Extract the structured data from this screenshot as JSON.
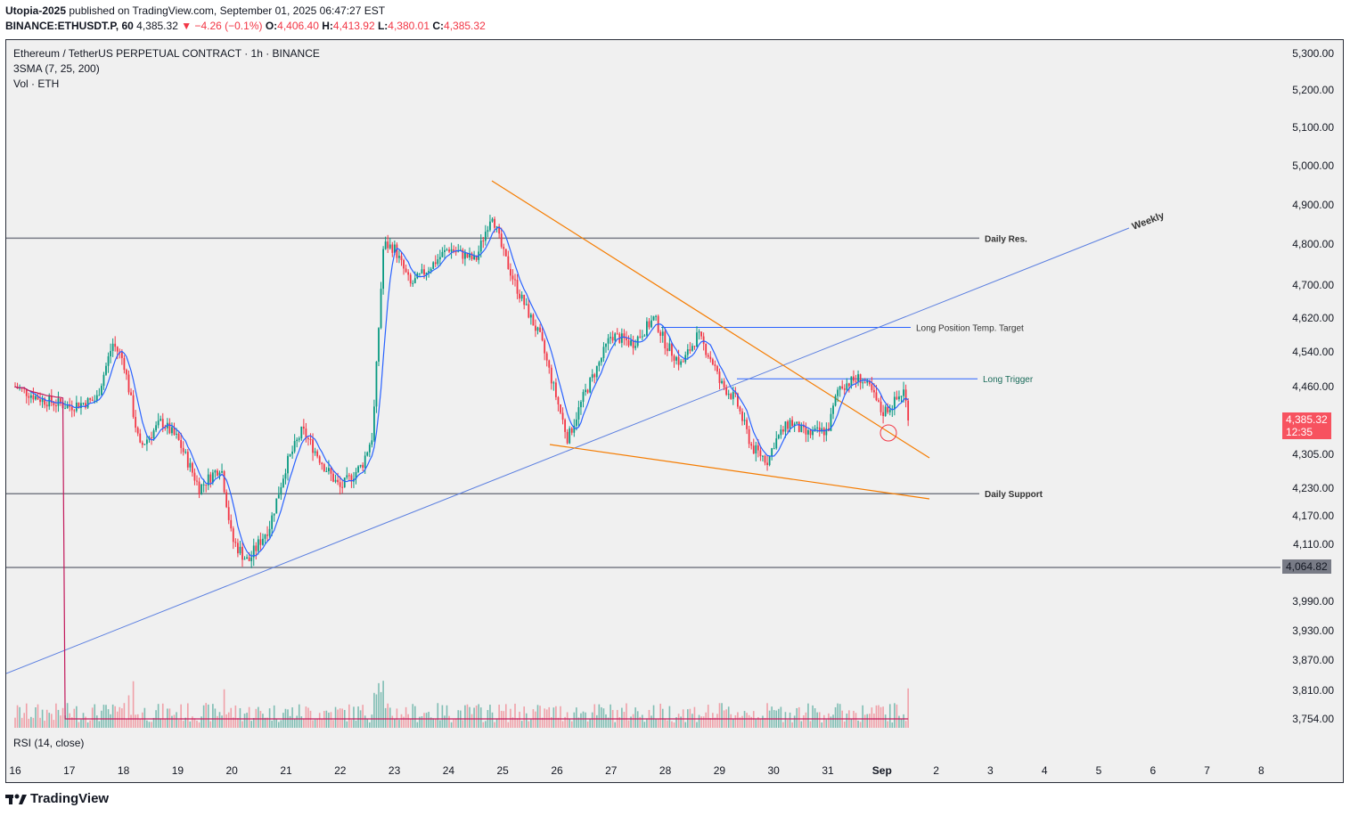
{
  "header": {
    "publisher": "Utopia-2025",
    "published_text": "published on TradingView.com, September 01, 2025 06:47:27 EST",
    "symbol": "BINANCE:ETHUSDT.P, 60",
    "last": "4,385.32",
    "change": "▼ −4.26 (−0.1%)",
    "o_label": "O:",
    "o_value": "4,406.40",
    "h_label": "H:",
    "h_value": "4,413.92",
    "l_label": "L:",
    "l_value": "4,380.01",
    "c_label": "C:",
    "c_value": "4,385.32"
  },
  "legend": {
    "title": "Ethereum / TetherUS PERPETUAL CONTRACT · 1h · BINANCE",
    "sma": "3SMA (7, 25, 200)",
    "vol": "Vol · ETH",
    "rsi": "RSI (14, close)"
  },
  "brand": "TradingView",
  "price_tag": {
    "value": "4,385.32",
    "countdown": "12:35",
    "color": "#f7525f"
  },
  "level_tag": {
    "value": "4,064.82",
    "color": "#787b86"
  },
  "colors": {
    "up": "#089981",
    "down": "#f23645",
    "sma_fast": "#2962ff",
    "sma_slow": "#c2185b",
    "trend": "#f57c00",
    "weekly": "#5b7fe0",
    "level": "#787b86"
  },
  "chart_data": {
    "type": "candlestick",
    "title": "Ethereum / TetherUS PERPETUAL CONTRACT · 1h · BINANCE",
    "price_ticks": [
      "5,300.00",
      "5,200.00",
      "5,100.00",
      "5,000.00",
      "4,900.00",
      "4,800.00",
      "4,700.00",
      "4,620.00",
      "4,540.00",
      "4,460.00",
      "4,305.00",
      "4,230.00",
      "4,170.00",
      "4,110.00",
      "3,990.00",
      "3,930.00",
      "3,870.00",
      "3,810.00",
      "3,754.00"
    ],
    "date_ticks": [
      "16",
      "17",
      "18",
      "19",
      "20",
      "21",
      "22",
      "23",
      "24",
      "25",
      "26",
      "27",
      "28",
      "29",
      "30",
      "31",
      "Sep",
      "2",
      "3",
      "4",
      "5",
      "6",
      "7",
      "8"
    ],
    "close_path": [
      [
        "16",
        4460
      ],
      [
        "16.5",
        4430
      ],
      [
        "17",
        4415
      ],
      [
        "17.5",
        4430
      ],
      [
        "17.8",
        4560
      ],
      [
        "18",
        4520
      ],
      [
        "18.3",
        4320
      ],
      [
        "18.7",
        4380
      ],
      [
        "19",
        4340
      ],
      [
        "19.4",
        4230
      ],
      [
        "19.8",
        4280
      ],
      [
        "20",
        4120
      ],
      [
        "20.3",
        4075
      ],
      [
        "20.7",
        4150
      ],
      [
        "21",
        4280
      ],
      [
        "21.3",
        4360
      ],
      [
        "21.7",
        4280
      ],
      [
        "22",
        4230
      ],
      [
        "22.4",
        4280
      ],
      [
        "22.6",
        4350
      ],
      [
        "22.8",
        4800
      ],
      [
        "23",
        4790
      ],
      [
        "23.3",
        4700
      ],
      [
        "23.7",
        4750
      ],
      [
        "24",
        4790
      ],
      [
        "24.5",
        4760
      ],
      [
        "24.8",
        4880
      ],
      [
        "25",
        4780
      ],
      [
        "25.3",
        4680
      ],
      [
        "25.7",
        4570
      ],
      [
        "26",
        4430
      ],
      [
        "26.2",
        4340
      ],
      [
        "26.5",
        4440
      ],
      [
        "26.8",
        4520
      ],
      [
        "27",
        4580
      ],
      [
        "27.4",
        4560
      ],
      [
        "27.8",
        4620
      ],
      [
        "28",
        4560
      ],
      [
        "28.3",
        4510
      ],
      [
        "28.6",
        4580
      ],
      [
        "28.9",
        4510
      ],
      [
        "29",
        4470
      ],
      [
        "29.3",
        4430
      ],
      [
        "29.6",
        4320
      ],
      [
        "29.9",
        4290
      ],
      [
        "30",
        4330
      ],
      [
        "30.3",
        4380
      ],
      [
        "30.6",
        4350
      ],
      [
        "31",
        4360
      ],
      [
        "31.2",
        4460
      ],
      [
        "31.6",
        4480
      ],
      [
        "31.8",
        4450
      ],
      [
        "Sep",
        4400
      ],
      [
        "Sep.2",
        4420
      ],
      [
        "Sep.4",
        4450
      ],
      [
        "Sep.5",
        4385.32
      ]
    ],
    "levels": [
      {
        "name": "Daily Res.",
        "value": 4815
      },
      {
        "name": "Long Position Temp. Target",
        "value": 4598
      },
      {
        "name": "Long Trigger",
        "value": 4478
      },
      {
        "name": "Daily Support",
        "value": 4218
      },
      {
        "name": "",
        "value": 4064.82
      }
    ],
    "annotations": [
      "Weekly",
      "Daily Res.",
      "Long Position Temp. Target",
      "Long Trigger",
      "Daily Support"
    ],
    "last_price": 4385.32,
    "sma_periods": [
      7,
      25,
      200
    ],
    "grid": false
  }
}
